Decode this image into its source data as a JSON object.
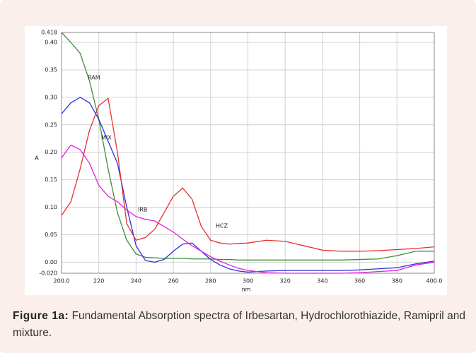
{
  "chart_data": {
    "type": "line",
    "xlabel": "nm",
    "ylabel": "A",
    "x": [
      200,
      205,
      210,
      215,
      220,
      225,
      230,
      235,
      240,
      245,
      250,
      255,
      260,
      265,
      270,
      275,
      280,
      285,
      290,
      295,
      300,
      310,
      320,
      330,
      340,
      350,
      360,
      370,
      380,
      390,
      400
    ],
    "series": [
      {
        "name": "RAM",
        "color": "#3a8f3a",
        "values": [
          0.418,
          0.4,
          0.38,
          0.33,
          0.26,
          0.17,
          0.09,
          0.04,
          0.015,
          0.009,
          0.008,
          0.007,
          0.007,
          0.007,
          0.006,
          0.006,
          0.006,
          0.005,
          0.005,
          0.004,
          0.004,
          0.004,
          0.004,
          0.004,
          0.004,
          0.004,
          0.005,
          0.006,
          0.012,
          0.02,
          0.02
        ]
      },
      {
        "name": "MIX",
        "color": "#3030e0",
        "values": [
          0.27,
          0.29,
          0.3,
          0.29,
          0.26,
          0.22,
          0.18,
          0.1,
          0.03,
          0.003,
          0,
          0.005,
          0.02,
          0.033,
          0.035,
          0.02,
          0.005,
          -0.005,
          -0.012,
          -0.016,
          -0.018,
          -0.016,
          -0.015,
          -0.015,
          -0.015,
          -0.015,
          -0.014,
          -0.012,
          -0.01,
          -0.003,
          0.002
        ]
      },
      {
        "name": "IRB",
        "color": "#e020e0",
        "values": [
          0.19,
          0.213,
          0.205,
          0.18,
          0.14,
          0.12,
          0.11,
          0.095,
          0.083,
          0.078,
          0.075,
          0.065,
          0.055,
          0.042,
          0.03,
          0.02,
          0.01,
          0.002,
          -0.005,
          -0.011,
          -0.015,
          -0.019,
          -0.02,
          -0.02,
          -0.02,
          -0.02,
          -0.019,
          -0.017,
          -0.015,
          -0.005,
          0
        ]
      },
      {
        "name": "HCZ",
        "color": "#e83030",
        "values": [
          0.085,
          0.11,
          0.17,
          0.24,
          0.285,
          0.298,
          0.2,
          0.07,
          0.04,
          0.045,
          0.06,
          0.09,
          0.12,
          0.135,
          0.115,
          0.065,
          0.04,
          0.035,
          0.033,
          0.034,
          0.035,
          0.04,
          0.038,
          0.03,
          0.022,
          0.02,
          0.02,
          0.021,
          0.023,
          0.025,
          0.028
        ]
      }
    ],
    "xlim": [
      200,
      400
    ],
    "xticks": [
      {
        "value": 200,
        "label": "200.0"
      },
      220,
      240,
      260,
      280,
      300,
      320,
      340,
      360,
      380,
      {
        "value": 400,
        "label": "400.0"
      }
    ],
    "ylim": [
      -0.02,
      0.418
    ],
    "yticks": [
      {
        "value": -0.02,
        "label": "-0.020"
      },
      {
        "value": 0,
        "label": "0.00"
      },
      0.05,
      {
        "value": 0.1,
        "label": "0.10"
      },
      0.15,
      {
        "value": 0.2,
        "label": "0.20"
      },
      0.25,
      {
        "value": 0.3,
        "label": "0.30"
      },
      0.35,
      {
        "value": 0.4,
        "label": "0.40"
      },
      0.418
    ],
    "grid": true
  },
  "caption": {
    "label": "Figure 1a:",
    "text": "Fundamental Absorption spectra of Irbesartan, Hydrochlorothiazide, Ramipril and mixture."
  }
}
